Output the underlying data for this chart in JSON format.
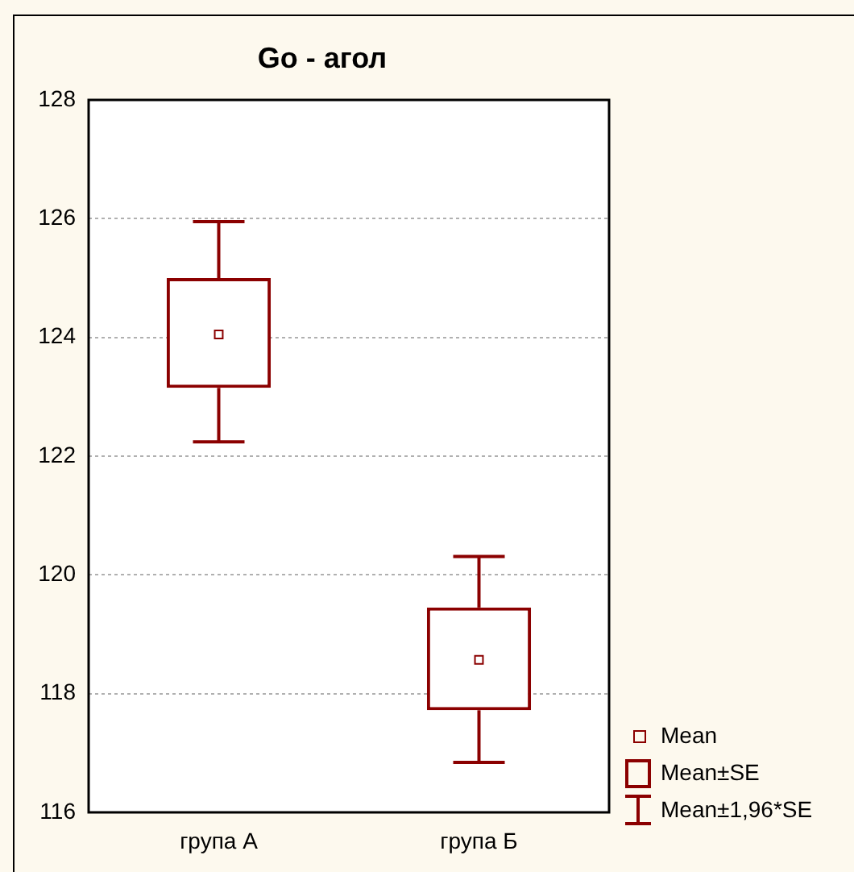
{
  "chart_data": {
    "type": "box",
    "title": "Go - агол",
    "categories": [
      "група А",
      "група Б"
    ],
    "color": "#8b0000",
    "boxes": [
      {
        "low": 122.24,
        "q1": 123.15,
        "median": 124.05,
        "q3": 125.0,
        "high": 125.95
      },
      {
        "low": 116.84,
        "q1": 117.72,
        "median": 118.57,
        "q3": 119.45,
        "high": 120.31
      }
    ],
    "ylim": [
      116,
      128
    ],
    "yticks": [
      116,
      118,
      120,
      122,
      124,
      126,
      128
    ],
    "grid": "y",
    "annotations": [
      "Mean",
      "Mean±SE",
      "Mean±1,96*SE"
    ]
  }
}
